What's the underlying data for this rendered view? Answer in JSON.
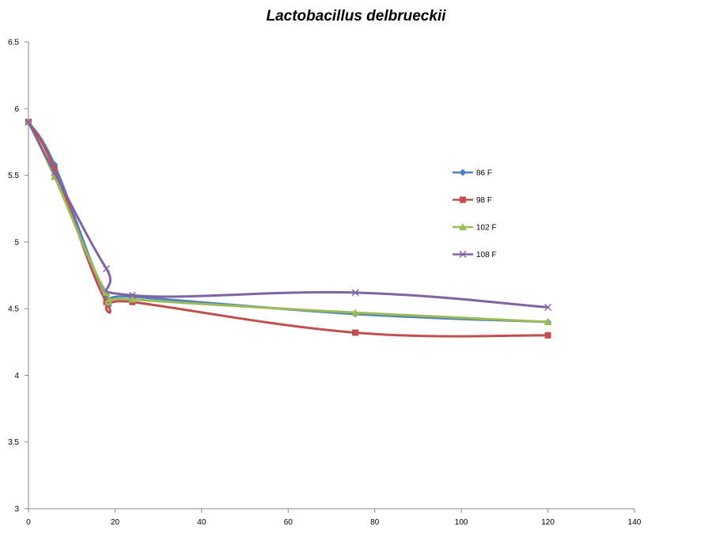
{
  "chart_data": {
    "type": "line",
    "title": "Lactobacillus delbrueckii",
    "xlabel": "",
    "ylabel": "",
    "xlim": [
      0,
      140
    ],
    "ylim": [
      3,
      6.5
    ],
    "xticks": [
      0,
      20,
      40,
      60,
      80,
      100,
      120,
      140
    ],
    "yticks": [
      3,
      3.5,
      4,
      4.5,
      5,
      5.5,
      6,
      6.5
    ],
    "grid": false,
    "smooth": true,
    "legend_position": "right",
    "x": [
      0,
      6,
      18,
      24,
      75.5,
      120
    ],
    "series": [
      {
        "name": "86 F",
        "color": "#4F81BD",
        "marker": "diamond",
        "values": [
          5.9,
          5.58,
          4.6,
          4.59,
          4.46,
          4.4
        ]
      },
      {
        "name": "98 F",
        "color": "#C0504D",
        "marker": "square",
        "values": [
          5.9,
          5.55,
          4.55,
          4.55,
          4.32,
          4.3
        ]
      },
      {
        "name": "102 F",
        "color": "#9BBB59",
        "marker": "triangle",
        "values": [
          5.9,
          5.49,
          4.62,
          4.57,
          4.47,
          4.4
        ]
      },
      {
        "name": "108 F",
        "color": "#8064A2",
        "marker": "x",
        "values": [
          5.9,
          5.52,
          4.8,
          4.6,
          4.62,
          4.51
        ]
      }
    ]
  }
}
